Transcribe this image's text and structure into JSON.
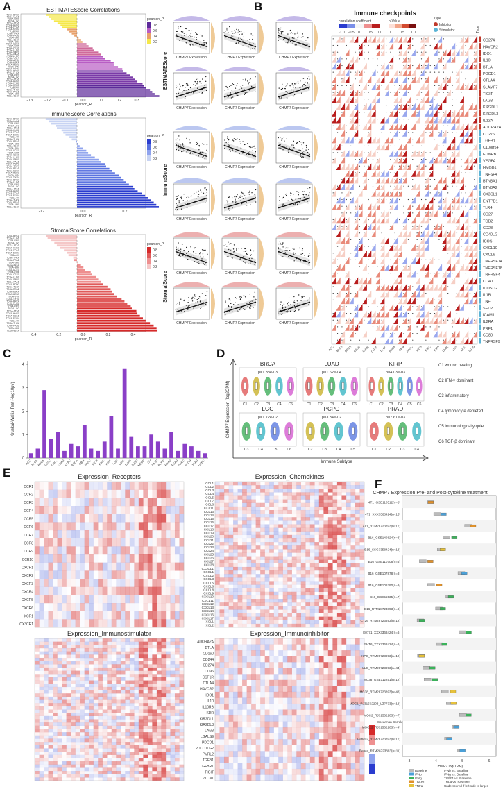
{
  "panels": {
    "A": {
      "label": "A",
      "bar_titles": [
        "ESTIMATEScore Correlations",
        "ImmuneScore Correlations",
        "StromalScore Correlations"
      ],
      "xaxis_label": "pearson_R",
      "legend_title": "pearson_P",
      "legend_ticks": [
        "0.8",
        "0.6",
        "0.4",
        "0.2"
      ],
      "scatter_row_labels": [
        "ESTIMATEScore",
        "ImmuneScore",
        "StromalScore"
      ],
      "scatter_xlabel": "CHMP7 Expression",
      "estimate_x_ticks": [
        "-0.3",
        "-0.2",
        "-0.1",
        "0.0",
        "0.1",
        "0.2",
        "0.3"
      ],
      "immune_x_ticks": [
        "-0.2",
        "0.0",
        "0.2"
      ],
      "stromal_x_ticks": [
        "-0.4",
        "-0.2",
        "0.0",
        "0.2",
        "0.4"
      ]
    },
    "B": {
      "label": "B",
      "title": "Immune checkpoints",
      "legend_corr_title": "correlation coefficient",
      "legend_p_title": "p-Value",
      "legend_corr_ticks": [
        "-1.0",
        "-0.5",
        "0",
        "0.5",
        "1.0"
      ],
      "legend_p_ticks": [
        "0",
        "0.5",
        "1.0"
      ],
      "type_title": "Type",
      "type_legend": [
        "Inhibitor",
        "Stimulator"
      ],
      "type_header": "Type",
      "genes": [
        "CD274",
        "HAVCR2",
        "IDO1",
        "IL10",
        "BTLA",
        "PDCD1",
        "CTLA4",
        "SLAMF7",
        "TIGIT",
        "LAG3",
        "KIR2DL1",
        "KIR2DL3",
        "IL12A",
        "ADORA2A",
        "CD276",
        "TGFB1",
        "C10orf54",
        "EDNRB",
        "VEGFA",
        "HMGB1",
        "TNFSF4",
        "BTN3A1",
        "BTN3A2",
        "CX3CL1",
        "ENTPD1",
        "TLR4",
        "CD27",
        "TGB2",
        "CD28",
        "CD40LG",
        "ICOS",
        "CXCL10",
        "CXCL9",
        "TNFRSF14",
        "TNFRSF18",
        "TNFRSF4",
        "CD40",
        "ICOSLG",
        "IL1B",
        "TNF",
        "SELP",
        "ICAM1",
        "IL2RA",
        "PRF1",
        "CD80",
        "TNFRSF9"
      ]
    },
    "C": {
      "label": "C",
      "ylabel": "Kruskal-Wallis Test (-log10pv)",
      "yticks": [
        "0",
        "1",
        "2",
        "3",
        "4"
      ]
    },
    "D": {
      "label": "D",
      "ylabel": "CHMP7 Expression (log2CPM)",
      "xlabel": "Immune Subtype",
      "inner_ylabel": "Expression (log2CPM)",
      "subplots": [
        {
          "name": "BRCA",
          "p": "p=1.38e-03",
          "cats": [
            "C1",
            "C2",
            "C3",
            "C4",
            "C6"
          ]
        },
        {
          "name": "LUAD",
          "p": "p=1.62e-04",
          "cats": [
            "C1",
            "C2",
            "C3",
            "C4",
            "C6"
          ]
        },
        {
          "name": "KIRP",
          "p": "p=4.03e-03",
          "cats": [
            "C1",
            "C2",
            "C3",
            "C4",
            "C5",
            "C6"
          ]
        },
        {
          "name": "LGG",
          "p": "p=1.72e-02",
          "cats": [
            "C3",
            "C4",
            "C5",
            "C6"
          ]
        },
        {
          "name": "PCPG",
          "p": "p=3.34e-02",
          "cats": [
            "C2",
            "C3",
            "C4",
            "C5"
          ]
        },
        {
          "name": "PRAD",
          "p": "p=7.61e-03",
          "cats": [
            "C1",
            "C2",
            "C3",
            "C4"
          ]
        }
      ],
      "legend": [
        "C1 wound healing",
        "C2 IFN-γ dominant",
        "C3 inflammatory",
        "C4 lymphocyte depleted",
        "C5 immunologically quiet",
        "C6 TGF-β dominant"
      ]
    },
    "E": {
      "label": "E",
      "titles": [
        "Expression_Receptors",
        "Expression_Chemokines",
        "Expression_Immunostimulator",
        "Expression_Immunoinhibitor"
      ],
      "receptors": [
        "CCR1",
        "CCR2",
        "CCR3",
        "CCR4",
        "CCR5",
        "CCR6",
        "CCR7",
        "CCR8",
        "CCR9",
        "CCR10",
        "CXCR1",
        "CXCR2",
        "CXCR3",
        "CXCR4",
        "CXCR5",
        "CXCR6",
        "XCR1",
        "CX3CR1"
      ],
      "chemokines": [
        "CCL1",
        "CCL2",
        "CCL3",
        "CCL4",
        "CCL5",
        "CCL7",
        "CCL8",
        "CCL11",
        "CCL13",
        "CCL14",
        "CCL15",
        "CCL16",
        "CCL17",
        "CCL18",
        "CCL19",
        "CCL20",
        "CCL21",
        "CCL22",
        "CCL23",
        "CCL24",
        "CCL25",
        "CCL26",
        "CCL27",
        "CCL28",
        "CX3CL1",
        "CXCL1",
        "CXCL2",
        "CXCL3",
        "CXCL5",
        "CXCL6",
        "CXCL8",
        "CXCL9",
        "CXCL10",
        "CXCL11",
        "CXCL12",
        "CXCL13",
        "CXCL14",
        "CXCL16",
        "CXCL17",
        "XCL1",
        "XCL2"
      ],
      "inhibitors": [
        "ADORA2A",
        "BTLA",
        "CD160",
        "CD244",
        "CD274",
        "CD96",
        "CSF1R",
        "CTLA4",
        "HAVCR2",
        "IDO1",
        "IL10",
        "IL10RB",
        "KDR",
        "KIR2DL1",
        "KIR2DL3",
        "LAG3",
        "LGALS9",
        "PDCD1",
        "PDCD1LG2",
        "PVRL2",
        "TGFB1",
        "TGFBR1",
        "TIGIT",
        "VTCN1"
      ],
      "legend_title": "Spearman Correlation"
    },
    "F": {
      "label": "F",
      "title": "CHMP7 Expression Pre- and Post-cytokine treatment",
      "xlabel": "CHMP7 log(TPM)",
      "xticks": [
        "3",
        "4",
        "5",
        "6"
      ],
      "datasets": [
        "4T1_GSE110512(n=8)",
        "4T1_XXX3368424(n=15)",
        "4T1_RTM28723893(n=12)",
        "B16_GSE149824(n=8)",
        "B16_SSG3358424(n=18)",
        "B16_GSE110708(n=6)",
        "B16_GSE107878(n=8)",
        "B16_GSE106390(n=9)",
        "B16_GSE55535(n=7)",
        "B16_RTM28723893(n=8)",
        "CT26_RTM28723893(n=12)",
        "E0771_XXX3368424(n=6)",
        "EMT6_XXX3368424(n=6)",
        "KPC_RTM28723893(n=12)",
        "LLC_RTM28723893(n=44)",
        "MC38_GSE112251(n=12)",
        "MC38_RTM28723893(n=48)",
        "MOC1_RJ31562203_LZ7733(n=18)",
        "MOC2_RJ31562203(n=7)",
        "MOC22_RJ31562203(n=4)",
        "Panc02_RTM28723893(n=12)",
        "Renca_RTM28723893(n=11)"
      ],
      "legend_left": [
        "Baseline",
        "IFNb",
        "IFNg",
        "TGFb1",
        "TNFa"
      ],
      "legend_right": [
        "IFNb vs. Baseline",
        "IFNg vs. Baseline",
        "TGFb1 vs. Baseline",
        "TNFa vs. Baseline",
        "Underscored if left side is larger"
      ]
    }
  },
  "chart_data": [
    {
      "type": "bar",
      "title": "Kruskal-Wallis Test (-log10pv)",
      "values": [
        0.2,
        0.4,
        2.9,
        0.8,
        1.1,
        0.3,
        0.6,
        0.5,
        1.4,
        0.4,
        0.3,
        0.7,
        1.8,
        0.4,
        3.8,
        0.9,
        0.5,
        0.5,
        1.0,
        0.7,
        0.4,
        1.1,
        0.3,
        0.6,
        0.5,
        0.3,
        0.2
      ],
      "yticks": [
        0,
        1,
        2,
        3,
        4
      ],
      "ylim": [
        0,
        4
      ]
    }
  ],
  "colors": {
    "estimate_grad": [
      "#5d2a9a",
      "#b85cc4",
      "#e8a06a",
      "#f5e84a"
    ],
    "immune_bar": "#2a3ccf",
    "stromal_bar": "#d62a2a",
    "bar_c": "#8a3fc7",
    "heat_pos": "#c0392b",
    "heat_neg": "#3f51d6"
  }
}
